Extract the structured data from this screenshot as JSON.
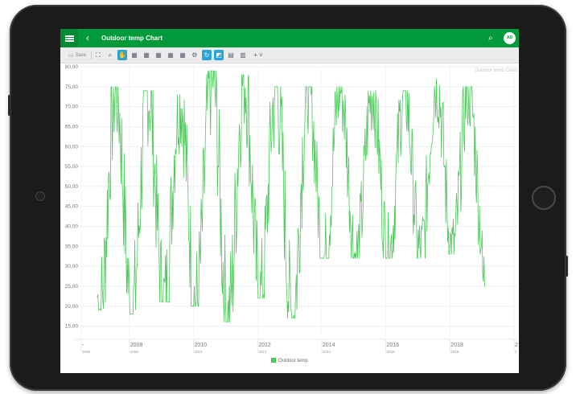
{
  "app": {
    "title": "Outdoor temp Chart",
    "back_icon": "chevron-left-icon",
    "back_glyph": "‹",
    "search_icon": "search-icon",
    "search_glyph": "⌕",
    "avatar_initials": "AD",
    "accent_color": "#009a3a"
  },
  "toolbar": {
    "save_label": "Save",
    "add_glyph": "+ ˅"
  },
  "chart_data": {
    "type": "line",
    "title": "Outdoor temp Chart",
    "xlabel": "",
    "ylabel": "",
    "ylim": [
      12.5,
      80
    ],
    "xlim": [
      2006.5,
      2020.1
    ],
    "grid": true,
    "legend_position": "bottom",
    "ytick_labels": [
      "15,00",
      "20,00",
      "25,00",
      "30,00",
      "35,00",
      "40,00",
      "45,00",
      "50,00",
      "55,00",
      "60,00",
      "65,00",
      "70,00",
      "75,00",
      "80,00"
    ],
    "xticks_major": [
      {
        "x": 2008,
        "label": "2008",
        "sub": "2008"
      },
      {
        "x": 2010,
        "label": "2010",
        "sub": "2010"
      },
      {
        "x": 2012,
        "label": "2012",
        "sub": "2012"
      },
      {
        "x": 2014,
        "label": "2014",
        "sub": "2014"
      },
      {
        "x": 2016,
        "label": "2016",
        "sub": "2016"
      },
      {
        "x": 2018,
        "label": "2018",
        "sub": "2018"
      }
    ],
    "edge_ticks": [
      {
        "x": 2006.5,
        "label": "-",
        "sub": "2006"
      },
      {
        "x": 2020.0,
        "label": "2",
        "sub": "2"
      }
    ],
    "series": [
      {
        "name": "Outdoor temp",
        "color": "#4cc95a",
        "peaks": [
          {
            "year": 2007,
            "min_before": 19,
            "max": 75
          },
          {
            "year": 2008,
            "min_before": 18,
            "max": 74
          },
          {
            "year": 2009,
            "min_before": 21,
            "max": 73
          },
          {
            "year": 2010,
            "min_before": 20,
            "max": 79
          },
          {
            "year": 2011,
            "min_before": 16,
            "max": 78
          },
          {
            "year": 2012,
            "min_before": 22,
            "max": 75
          },
          {
            "year": 2013,
            "min_before": 17,
            "max": 75
          },
          {
            "year": 2014,
            "min_before": 32,
            "max": 75
          },
          {
            "year": 2015,
            "min_before": 32,
            "max": 74
          },
          {
            "year": 2016,
            "min_before": 32,
            "max": 74
          },
          {
            "year": 2017,
            "min_before": 32,
            "max": 77
          },
          {
            "year": 2018,
            "min_before": 33,
            "max": 75
          }
        ],
        "final": {
          "min": 25,
          "end": 48
        }
      }
    ]
  }
}
